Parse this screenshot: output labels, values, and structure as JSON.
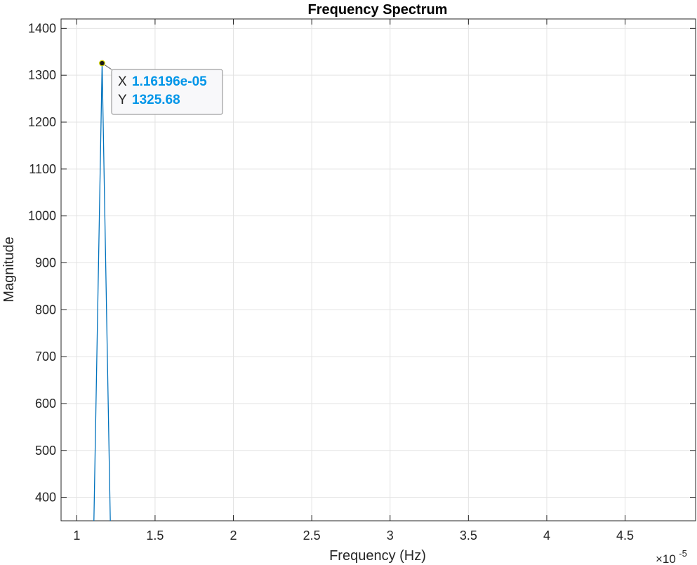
{
  "chart_data": {
    "type": "line",
    "title": "Frequency Spectrum",
    "xlabel": "Frequency (Hz)",
    "ylabel": "Magnitude",
    "x_exponent": "×10",
    "x_exponent_power": "-5",
    "xlim": [
      0.9,
      4.95
    ],
    "ylim": [
      350,
      1420
    ],
    "xticks": [
      1,
      1.5,
      2,
      2.5,
      3,
      3.5,
      4,
      4.5
    ],
    "xtick_labels": [
      "1",
      "1.5",
      "2",
      "2.5",
      "3",
      "3.5",
      "4",
      "4.5"
    ],
    "yticks": [
      400,
      500,
      600,
      700,
      800,
      900,
      1000,
      1100,
      1200,
      1300,
      1400
    ],
    "ytick_labels": [
      "400",
      "500",
      "600",
      "700",
      "800",
      "900",
      "1000",
      "1100",
      "1200",
      "1300",
      "1400"
    ],
    "grid": true,
    "series": [
      {
        "x": [
          1.1096,
          1.16196,
          1.2143
        ],
        "y": [
          350,
          1325.68,
          350
        ],
        "color": "#0072bd"
      }
    ],
    "datatip": {
      "x_label": "X",
      "x_value": "1.16196e-05",
      "y_label": "Y",
      "y_value": "1325.68",
      "x": 1.16196,
      "y": 1325.68,
      "value_color": "#0095e8"
    }
  }
}
